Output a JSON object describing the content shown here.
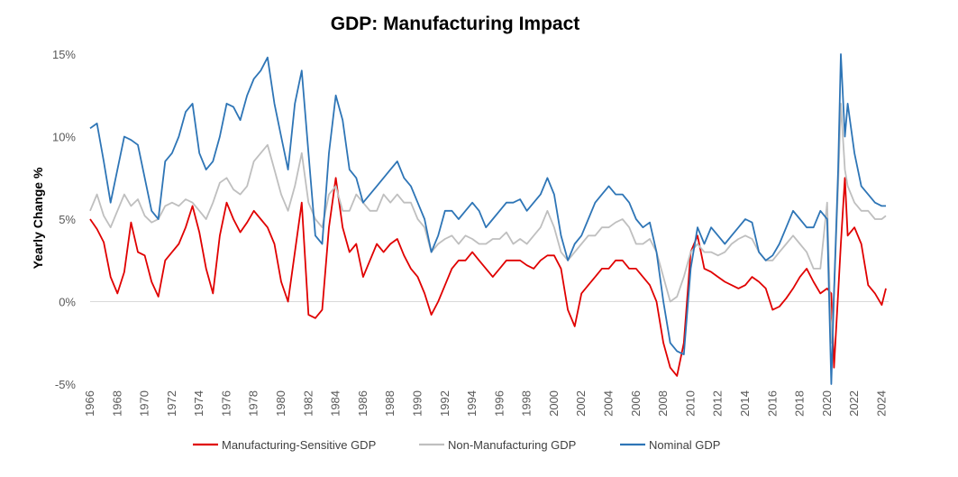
{
  "chart_data": {
    "type": "line",
    "title": "GDP: Manufacturing Impact",
    "xlabel": "",
    "ylabel": "Yearly Change %",
    "xlim": [
      1966,
      2024.5
    ],
    "ylim": [
      -5,
      15
    ],
    "y_ticks": [
      -5,
      0,
      5,
      10,
      15
    ],
    "y_tick_labels": [
      "-5%",
      "0%",
      "5%",
      "10%",
      "15%"
    ],
    "x_ticks": [
      1966,
      1968,
      1970,
      1972,
      1974,
      1976,
      1978,
      1980,
      1982,
      1984,
      1986,
      1988,
      1990,
      1992,
      1994,
      1996,
      1998,
      2000,
      2002,
      2004,
      2006,
      2008,
      2010,
      2012,
      2014,
      2016,
      2018,
      2020,
      2022,
      2024
    ],
    "x_tick_labels": [
      "1966",
      "1968",
      "1970",
      "1972",
      "1974",
      "1976",
      "1978",
      "1980",
      "1982",
      "1984",
      "1986",
      "1988",
      "1990",
      "1992",
      "1994",
      "1996",
      "1998",
      "2000",
      "2002",
      "2004",
      "2006",
      "2008",
      "2010",
      "2012",
      "2014",
      "2016",
      "2018",
      "2020",
      "2022",
      "2024"
    ],
    "grid": false,
    "legend_position": "bottom",
    "series": [
      {
        "name": "Manufacturing-Sensitive GDP",
        "color": "#e00000",
        "x": [
          1966.0,
          1966.5,
          1967.0,
          1967.5,
          1968.0,
          1968.5,
          1969.0,
          1969.5,
          1970.0,
          1970.5,
          1971.0,
          1971.5,
          1972.0,
          1972.5,
          1973.0,
          1973.5,
          1974.0,
          1974.5,
          1975.0,
          1975.5,
          1976.0,
          1976.5,
          1977.0,
          1977.5,
          1978.0,
          1978.5,
          1979.0,
          1979.5,
          1980.0,
          1980.5,
          1981.0,
          1981.5,
          1982.0,
          1982.5,
          1983.0,
          1983.5,
          1984.0,
          1984.5,
          1985.0,
          1985.5,
          1986.0,
          1986.5,
          1987.0,
          1987.5,
          1988.0,
          1988.5,
          1989.0,
          1989.5,
          1990.0,
          1990.5,
          1991.0,
          1991.5,
          1992.0,
          1992.5,
          1993.0,
          1993.5,
          1994.0,
          1994.5,
          1995.0,
          1995.5,
          1996.0,
          1996.5,
          1997.0,
          1997.5,
          1998.0,
          1998.5,
          1999.0,
          1999.5,
          2000.0,
          2000.5,
          2001.0,
          2001.5,
          2002.0,
          2002.5,
          2003.0,
          2003.5,
          2004.0,
          2004.5,
          2005.0,
          2005.5,
          2006.0,
          2006.5,
          2007.0,
          2007.5,
          2008.0,
          2008.5,
          2009.0,
          2009.5,
          2010.0,
          2010.5,
          2011.0,
          2011.5,
          2012.0,
          2012.5,
          2013.0,
          2013.5,
          2014.0,
          2014.5,
          2015.0,
          2015.5,
          2016.0,
          2016.5,
          2017.0,
          2017.5,
          2018.0,
          2018.5,
          2019.0,
          2019.5,
          2020.0,
          2020.3,
          2020.5,
          2020.8,
          2021.0,
          2021.3,
          2021.5,
          2022.0,
          2022.5,
          2023.0,
          2023.5,
          2024.0,
          2024.3
        ],
        "values": [
          5.0,
          4.4,
          3.6,
          1.5,
          0.5,
          1.8,
          4.8,
          3.0,
          2.8,
          1.2,
          0.3,
          2.5,
          3.0,
          3.5,
          4.5,
          5.8,
          4.2,
          2.0,
          0.5,
          4.0,
          6.0,
          5.0,
          4.2,
          4.8,
          5.5,
          5.0,
          4.5,
          3.5,
          1.2,
          0.0,
          3.0,
          6.0,
          -0.8,
          -1.0,
          -0.5,
          4.5,
          7.5,
          4.5,
          3.0,
          3.5,
          1.5,
          2.5,
          3.5,
          3.0,
          3.5,
          3.8,
          2.8,
          2.0,
          1.5,
          0.5,
          -0.8,
          0.0,
          1.0,
          2.0,
          2.5,
          2.5,
          3.0,
          2.5,
          2.0,
          1.5,
          2.0,
          2.5,
          2.5,
          2.5,
          2.2,
          2.0,
          2.5,
          2.8,
          2.8,
          2.0,
          -0.5,
          -1.5,
          0.5,
          1.0,
          1.5,
          2.0,
          2.0,
          2.5,
          2.5,
          2.0,
          2.0,
          1.5,
          1.0,
          0.0,
          -2.5,
          -4.0,
          -4.5,
          -2.5,
          3.0,
          4.0,
          2.0,
          1.8,
          1.5,
          1.2,
          1.0,
          0.8,
          1.0,
          1.5,
          1.2,
          0.8,
          -0.5,
          -0.3,
          0.2,
          0.8,
          1.5,
          2.0,
          1.2,
          0.5,
          0.8,
          0.5,
          -4.0,
          0.5,
          3.5,
          7.5,
          4.0,
          4.5,
          3.5,
          1.0,
          0.5,
          -0.2,
          0.8
        ]
      },
      {
        "name": "Non-Manufacturing GDP",
        "color": "#bfbfbf",
        "x": [
          1966.0,
          1966.5,
          1967.0,
          1967.5,
          1968.0,
          1968.5,
          1969.0,
          1969.5,
          1970.0,
          1970.5,
          1971.0,
          1971.5,
          1972.0,
          1972.5,
          1973.0,
          1973.5,
          1974.0,
          1974.5,
          1975.0,
          1975.5,
          1976.0,
          1976.5,
          1977.0,
          1977.5,
          1978.0,
          1978.5,
          1979.0,
          1979.5,
          1980.0,
          1980.5,
          1981.0,
          1981.5,
          1982.0,
          1982.5,
          1983.0,
          1983.5,
          1984.0,
          1984.5,
          1985.0,
          1985.5,
          1986.0,
          1986.5,
          1987.0,
          1987.5,
          1988.0,
          1988.5,
          1989.0,
          1989.5,
          1990.0,
          1990.5,
          1991.0,
          1991.5,
          1992.0,
          1992.5,
          1993.0,
          1993.5,
          1994.0,
          1994.5,
          1995.0,
          1995.5,
          1996.0,
          1996.5,
          1997.0,
          1997.5,
          1998.0,
          1998.5,
          1999.0,
          1999.5,
          2000.0,
          2000.5,
          2001.0,
          2001.5,
          2002.0,
          2002.5,
          2003.0,
          2003.5,
          2004.0,
          2004.5,
          2005.0,
          2005.5,
          2006.0,
          2006.5,
          2007.0,
          2007.5,
          2008.0,
          2008.5,
          2009.0,
          2009.5,
          2010.0,
          2010.5,
          2011.0,
          2011.5,
          2012.0,
          2012.5,
          2013.0,
          2013.5,
          2014.0,
          2014.5,
          2015.0,
          2015.5,
          2016.0,
          2016.5,
          2017.0,
          2017.5,
          2018.0,
          2018.5,
          2019.0,
          2019.5,
          2020.0,
          2020.3,
          2020.5,
          2020.8,
          2021.0,
          2021.3,
          2021.5,
          2022.0,
          2022.5,
          2023.0,
          2023.5,
          2024.0,
          2024.3
        ],
        "values": [
          5.5,
          6.5,
          5.2,
          4.5,
          5.5,
          6.5,
          5.8,
          6.2,
          5.2,
          4.8,
          5.0,
          5.8,
          6.0,
          5.8,
          6.2,
          6.0,
          5.5,
          5.0,
          6.0,
          7.2,
          7.5,
          6.8,
          6.5,
          7.0,
          8.5,
          9.0,
          9.5,
          8.0,
          6.5,
          5.5,
          7.0,
          9.0,
          6.0,
          5.0,
          4.5,
          6.5,
          7.0,
          5.5,
          5.5,
          6.5,
          6.0,
          5.5,
          5.5,
          6.5,
          6.0,
          6.5,
          6.0,
          6.0,
          5.0,
          4.5,
          3.0,
          3.5,
          3.8,
          4.0,
          3.5,
          4.0,
          3.8,
          3.5,
          3.5,
          3.8,
          3.8,
          4.2,
          3.5,
          3.8,
          3.5,
          4.0,
          4.5,
          5.5,
          4.5,
          3.0,
          2.5,
          3.0,
          3.5,
          4.0,
          4.0,
          4.5,
          4.5,
          4.8,
          5.0,
          4.5,
          3.5,
          3.5,
          3.8,
          3.0,
          1.5,
          0.0,
          0.3,
          1.5,
          3.0,
          3.5,
          3.0,
          3.0,
          2.8,
          3.0,
          3.5,
          3.8,
          4.0,
          3.8,
          3.0,
          2.5,
          2.5,
          3.0,
          3.5,
          4.0,
          3.5,
          3.0,
          2.0,
          2.0,
          6.0,
          -2.5,
          0.5,
          7.0,
          12.0,
          8.0,
          7.0,
          6.0,
          5.5,
          5.5,
          5.0,
          5.0,
          5.2
        ]
      },
      {
        "name": "Nominal GDP",
        "color": "#2e75b6",
        "x": [
          1966.0,
          1966.5,
          1967.0,
          1967.5,
          1968.0,
          1968.5,
          1969.0,
          1969.5,
          1970.0,
          1970.5,
          1971.0,
          1971.5,
          1972.0,
          1972.5,
          1973.0,
          1973.5,
          1974.0,
          1974.5,
          1975.0,
          1975.5,
          1976.0,
          1976.5,
          1977.0,
          1977.5,
          1978.0,
          1978.5,
          1979.0,
          1979.5,
          1980.0,
          1980.5,
          1981.0,
          1981.5,
          1982.0,
          1982.5,
          1983.0,
          1983.5,
          1984.0,
          1984.5,
          1985.0,
          1985.5,
          1986.0,
          1986.5,
          1987.0,
          1987.5,
          1988.0,
          1988.5,
          1989.0,
          1989.5,
          1990.0,
          1990.5,
          1991.0,
          1991.5,
          1992.0,
          1992.5,
          1993.0,
          1993.5,
          1994.0,
          1994.5,
          1995.0,
          1995.5,
          1996.0,
          1996.5,
          1997.0,
          1997.5,
          1998.0,
          1998.5,
          1999.0,
          1999.5,
          2000.0,
          2000.5,
          2001.0,
          2001.5,
          2002.0,
          2002.5,
          2003.0,
          2003.5,
          2004.0,
          2004.5,
          2005.0,
          2005.5,
          2006.0,
          2006.5,
          2007.0,
          2007.5,
          2008.0,
          2008.5,
          2009.0,
          2009.5,
          2010.0,
          2010.5,
          2011.0,
          2011.5,
          2012.0,
          2012.5,
          2013.0,
          2013.5,
          2014.0,
          2014.5,
          2015.0,
          2015.5,
          2016.0,
          2016.5,
          2017.0,
          2017.5,
          2018.0,
          2018.5,
          2019.0,
          2019.5,
          2020.0,
          2020.3,
          2020.5,
          2020.8,
          2021.0,
          2021.3,
          2021.5,
          2022.0,
          2022.5,
          2023.0,
          2023.5,
          2024.0,
          2024.3
        ],
        "values": [
          10.5,
          10.8,
          8.5,
          6.0,
          8.0,
          10.0,
          9.8,
          9.5,
          7.5,
          5.5,
          5.0,
          8.5,
          9.0,
          10.0,
          11.5,
          12.0,
          9.0,
          8.0,
          8.5,
          10.0,
          12.0,
          11.8,
          11.0,
          12.5,
          13.5,
          14.0,
          14.8,
          12.0,
          10.0,
          8.0,
          12.0,
          14.0,
          9.0,
          4.0,
          3.5,
          9.0,
          12.5,
          11.0,
          8.0,
          7.5,
          6.0,
          6.5,
          7.0,
          7.5,
          8.0,
          8.5,
          7.5,
          7.0,
          6.0,
          5.0,
          3.0,
          4.0,
          5.5,
          5.5,
          5.0,
          5.5,
          6.0,
          5.5,
          4.5,
          5.0,
          5.5,
          6.0,
          6.0,
          6.2,
          5.5,
          6.0,
          6.5,
          7.5,
          6.5,
          4.0,
          2.5,
          3.5,
          4.0,
          5.0,
          6.0,
          6.5,
          7.0,
          6.5,
          6.5,
          6.0,
          5.0,
          4.5,
          4.8,
          3.0,
          0.0,
          -2.5,
          -3.0,
          -3.2,
          2.0,
          4.5,
          3.5,
          4.5,
          4.0,
          3.5,
          4.0,
          4.5,
          5.0,
          4.8,
          3.0,
          2.5,
          2.8,
          3.5,
          4.5,
          5.5,
          5.0,
          4.5,
          4.5,
          5.5,
          5.0,
          -5.0,
          0.5,
          8.0,
          15.0,
          10.0,
          12.0,
          9.0,
          7.0,
          6.5,
          6.0,
          5.8,
          5.8
        ]
      }
    ]
  }
}
